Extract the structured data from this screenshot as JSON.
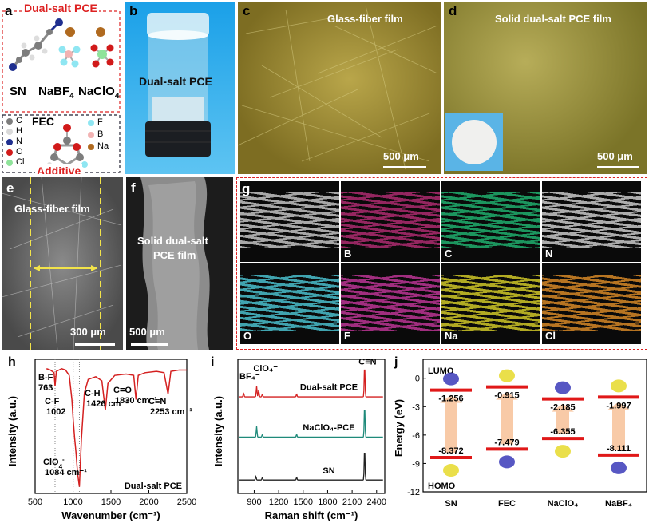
{
  "panel_a": {
    "label": "a",
    "title": "Dual-salt PCE",
    "molecules": [
      "SN",
      "NaBF",
      "NaClO"
    ],
    "legend_left": [
      "C",
      "H",
      "N",
      "O",
      "Cl"
    ],
    "legend_right": [
      "F",
      "B",
      "Na"
    ],
    "fec": "FEC",
    "additive": "Additive",
    "colors": {
      "C": "#7d7d7d",
      "H": "#d9d9d9",
      "N": "#1f2f8f",
      "O": "#d11a1a",
      "Cl": "#8fe39a",
      "F": "#8fe6f2",
      "B": "#f2b3b3",
      "Na": "#b06a1f"
    }
  },
  "panel_b": {
    "label": "b",
    "caption": "Dual-salt PCE"
  },
  "panel_c": {
    "label": "c",
    "caption": "Glass-fiber film",
    "scale": "500 μm"
  },
  "panel_d": {
    "label": "d",
    "caption": "Solid dual-salt PCE film",
    "scale": "500 μm"
  },
  "panel_e": {
    "label": "e",
    "caption": "Glass-fiber film",
    "scale": "300 μm"
  },
  "panel_f": {
    "label": "f",
    "caption_line1": "Solid dual-salt",
    "caption_line2": "PCE film",
    "scale": "500 μm"
  },
  "panel_g": {
    "label": "g",
    "tiles": [
      {
        "name": "sem",
        "label": "",
        "color": "#b9b9b9"
      },
      {
        "name": "B",
        "label": "B",
        "color": "#c2307d"
      },
      {
        "name": "C",
        "label": "C",
        "color": "#23c47a"
      },
      {
        "name": "N",
        "label": "N",
        "color": "#e2e2e2"
      },
      {
        "name": "O",
        "label": "O",
        "color": "#52d6e6"
      },
      {
        "name": "F",
        "label": "F",
        "color": "#d23aa6"
      },
      {
        "name": "Na",
        "label": "Na",
        "color": "#e9e02c"
      },
      {
        "name": "Cl",
        "label": "Cl",
        "color": "#f0982a"
      }
    ]
  },
  "chart_data": [
    {
      "type": "line",
      "panel": "h",
      "xlabel": "Wavenumber (cm⁻¹)",
      "ylabel": "Intensity (a.u.)",
      "xlim": [
        500,
        2500
      ],
      "xticks": [
        500,
        1000,
        1500,
        2000,
        2500
      ],
      "legend": "Dual-salt PCE",
      "series": [
        {
          "name": "Dual-salt PCE",
          "color": "#d42020",
          "x": [
            650,
            700,
            750,
            763,
            780,
            850,
            900,
            950,
            985,
            1002,
            1020,
            1040,
            1060,
            1084,
            1110,
            1150,
            1200,
            1300,
            1380,
            1426,
            1460,
            1550,
            1700,
            1800,
            1830,
            1860,
            1950,
            2100,
            2200,
            2253,
            2290,
            2400,
            2500
          ],
          "y": [
            0.93,
            0.92,
            0.9,
            0.8,
            0.91,
            0.93,
            0.92,
            0.88,
            0.7,
            0.55,
            0.42,
            0.3,
            0.15,
            0.05,
            0.4,
            0.75,
            0.85,
            0.87,
            0.84,
            0.62,
            0.82,
            0.88,
            0.89,
            0.88,
            0.7,
            0.88,
            0.9,
            0.91,
            0.9,
            0.74,
            0.91,
            0.92,
            0.92
          ]
        }
      ],
      "annotations": [
        {
          "text": "B-F",
          "sub": "763"
        },
        {
          "text": "C-F",
          "sub": "1002"
        },
        {
          "text": "ClO",
          "sup": "4",
          "sup2": "-",
          "sub": "1084 cm⁻¹"
        },
        {
          "text": "C-H",
          "sub": "1426 cm⁻¹"
        },
        {
          "text": "C=O",
          "sub": "1830 cm⁻¹"
        },
        {
          "text": "C≡N",
          "sub": "2253 cm⁻¹"
        }
      ]
    },
    {
      "type": "line",
      "panel": "i",
      "xlabel": "Raman shift (cm⁻¹)",
      "ylabel": "Intensity (a.u.)",
      "xlim": [
        700,
        2500
      ],
      "xticks": [
        900,
        1200,
        1500,
        1800,
        2100,
        2400
      ],
      "series": [
        {
          "name": "Dual-salt PCE",
          "color": "#d42020",
          "base": 0.72,
          "peaks": [
            [
              770,
              0.03
            ],
            [
              930,
              0.08
            ],
            [
              955,
              0.05
            ],
            [
              1000,
              0.02
            ],
            [
              1420,
              0.02
            ],
            [
              2253,
              0.24
            ]
          ]
        },
        {
          "name": "NaClO₄-PCE",
          "color": "#1f8a7a",
          "base": 0.42,
          "peaks": [
            [
              930,
              0.08
            ],
            [
              1000,
              0.02
            ],
            [
              1420,
              0.02
            ],
            [
              2253,
              0.24
            ]
          ]
        },
        {
          "name": "SN",
          "color": "#222222",
          "base": 0.1,
          "peaks": [
            [
              920,
              0.03
            ],
            [
              1000,
              0.02
            ],
            [
              1420,
              0.02
            ],
            [
              2253,
              0.24
            ]
          ]
        }
      ],
      "annotations": [
        {
          "text": "ClO₄⁻"
        },
        {
          "text": "BF₄⁻"
        },
        {
          "text": "C≡N"
        }
      ]
    },
    {
      "type": "bar",
      "panel": "j",
      "ylabel": "Energy (eV)",
      "ylim": [
        -12,
        2
      ],
      "yticks": [
        0,
        -3,
        -6,
        -9,
        -12
      ],
      "categories": [
        "SN",
        "FEC",
        "NaClO₄",
        "NaBF₄"
      ],
      "lumo": [
        -1.256,
        -0.915,
        -2.185,
        -1.997
      ],
      "homo": [
        -8.372,
        -7.479,
        -6.355,
        -8.111
      ],
      "lumo_label": "LUMO",
      "homo_label": "HOMO"
    }
  ]
}
